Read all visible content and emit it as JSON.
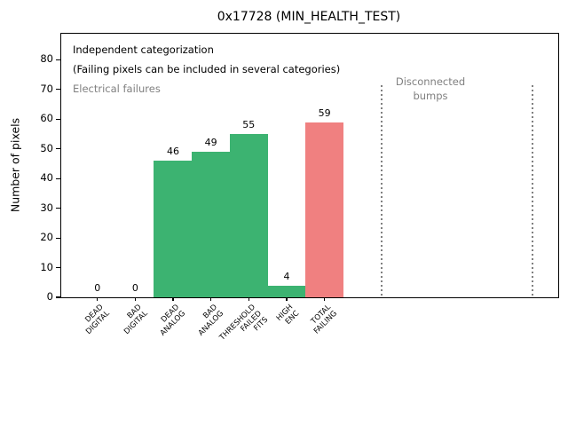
{
  "chart_data": {
    "type": "bar",
    "title": "0x17728 (MIN_HEALTH_TEST)",
    "ylabel": "Number of pixels",
    "xlabel": "",
    "categories": [
      "DEAD\nDIGITAL",
      "BAD\nDIGITAL",
      "DEAD\nANALOG",
      "BAD\nANALOG",
      "THRESHOLD\nFAILED\nFITS",
      "HIGH\nENC",
      "TOTAL\nFAILING"
    ],
    "values": [
      0,
      0,
      46,
      49,
      55,
      4,
      59
    ],
    "bar_labels": [
      "0",
      "0",
      "46",
      "49",
      "55",
      "4",
      "59"
    ],
    "bar_colors": [
      "#3cb371",
      "#3cb371",
      "#3cb371",
      "#3cb371",
      "#3cb371",
      "#3cb371",
      "#f08080"
    ],
    "yticks": [
      0,
      10,
      20,
      30,
      40,
      50,
      60,
      70,
      80
    ],
    "ylim": [
      0,
      88.8
    ],
    "grid": false,
    "legend": null,
    "annotations": [
      {
        "text": "Independent categorization",
        "color": "#000000"
      },
      {
        "text": "(Failing pixels can be included in several categories)",
        "color": "#000000"
      },
      {
        "text": "Electrical failures",
        "color": "#808080"
      },
      {
        "text": "Disconnected\nbumps",
        "color": "#808080"
      }
    ],
    "dotted_lines_color": "#808080"
  }
}
